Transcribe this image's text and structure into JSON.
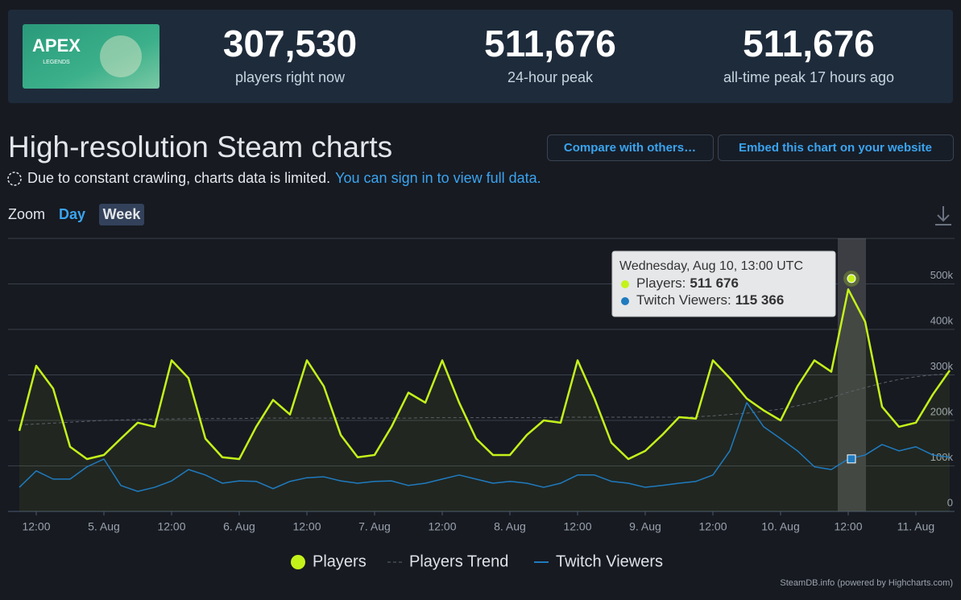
{
  "header": {
    "logo": {
      "title": "APEX",
      "subtitle": "LEGENDS"
    },
    "stats": [
      {
        "value": "307,530",
        "label": "players right now"
      },
      {
        "value": "511,676",
        "label": "24-hour peak"
      },
      {
        "value": "511,676",
        "label": "all-time peak 17 hours ago"
      }
    ]
  },
  "section": {
    "title": "High-resolution Steam charts",
    "buttons": [
      "Compare with others…",
      "Embed this chart on your website"
    ],
    "notice": "Due to constant crawling, charts data is limited.",
    "notice_link": "You can sign in to view full data.",
    "zoom_label": "Zoom",
    "zoom_options": [
      "Day",
      "Week"
    ]
  },
  "chart_data": {
    "type": "line",
    "categories": [
      null,
      "12:00",
      null,
      null,
      null,
      "5. Aug",
      null,
      null,
      null,
      "12:00",
      null,
      null,
      null,
      "6. Aug",
      null,
      null,
      null,
      "12:00",
      null,
      null,
      null,
      "7. Aug",
      null,
      null,
      null,
      "12:00",
      null,
      null,
      null,
      "8. Aug",
      null,
      null,
      null,
      "12:00",
      null,
      null,
      null,
      "9. Aug",
      null,
      null,
      null,
      "12:00",
      null,
      null,
      null,
      "10. Aug",
      null,
      null,
      null,
      "12:00",
      null,
      null,
      null,
      "11. Aug",
      null,
      null
    ],
    "series": [
      {
        "name": "Players",
        "color": "#c4f31a",
        "area": true,
        "values": [
          177000,
          320000,
          270000,
          142000,
          115000,
          124000,
          160000,
          195000,
          186000,
          332000,
          293000,
          160000,
          119000,
          115000,
          186000,
          245000,
          213000,
          332000,
          275000,
          168000,
          119000,
          124000,
          186000,
          261000,
          239000,
          332000,
          239000,
          160000,
          124000,
          124000,
          168000,
          200000,
          195000,
          332000,
          248000,
          151000,
          115000,
          133000,
          168000,
          207000,
          204000,
          332000,
          293000,
          248000,
          222000,
          200000,
          275000,
          332000,
          307000,
          488000,
          417000,
          230000,
          186000,
          195000,
          257000,
          310000
        ]
      },
      {
        "name": "Players Trend",
        "color": "#5d6169",
        "dashed": true,
        "values": [
          190000,
          192000,
          194000,
          196000,
          198000,
          200000,
          201000,
          202000,
          203000,
          203000,
          204000,
          204000,
          204000,
          204000,
          205000,
          205000,
          205000,
          205000,
          205000,
          205000,
          205000,
          205000,
          205000,
          205000,
          206000,
          206000,
          206000,
          206000,
          206000,
          206000,
          206000,
          206000,
          207000,
          207000,
          207000,
          207000,
          207000,
          207000,
          207000,
          207000,
          208000,
          210000,
          213000,
          216000,
          220000,
          225000,
          232000,
          240000,
          250000,
          262000,
          272000,
          282000,
          290000,
          296000,
          300000,
          303000
        ]
      },
      {
        "name": "Twitch Viewers",
        "color": "#1f7bbf",
        "values": [
          53000,
          89000,
          71000,
          71000,
          98000,
          115000,
          57000,
          44000,
          53000,
          67000,
          92000,
          80000,
          62000,
          67000,
          66000,
          50000,
          66000,
          74000,
          76000,
          67000,
          62000,
          66000,
          67000,
          57000,
          62000,
          71000,
          80000,
          71000,
          62000,
          66000,
          62000,
          53000,
          62000,
          80000,
          80000,
          66000,
          62000,
          53000,
          57000,
          62000,
          66000,
          80000,
          133000,
          239000,
          186000,
          160000,
          133000,
          98000,
          92000,
          115000,
          124000,
          147000,
          133000,
          142000,
          124000,
          119000
        ]
      }
    ],
    "ylim": [
      0,
      600000
    ],
    "yticks": [
      0,
      {
        "value": 100000,
        "label": "100k"
      },
      {
        "value": 200000,
        "label": "200k"
      },
      {
        "value": 300000,
        "label": "300k"
      },
      {
        "value": 400000,
        "label": "400k"
      },
      {
        "value": 500000,
        "label": "500k"
      }
    ],
    "grid": true,
    "legend": "bottom",
    "tooltip": {
      "title": "Wednesday, Aug 10, 13:00 UTC",
      "items": [
        {
          "label": "Players:",
          "value": 511676,
          "value_label": "511 676",
          "color": "#c4f31a"
        },
        {
          "label": "Twitch Viewers:",
          "value": 115366,
          "value_label": "115 366",
          "color": "#1f7bbf"
        }
      ]
    },
    "credits": "SteamDB.info (powered by Highcharts.com)"
  }
}
